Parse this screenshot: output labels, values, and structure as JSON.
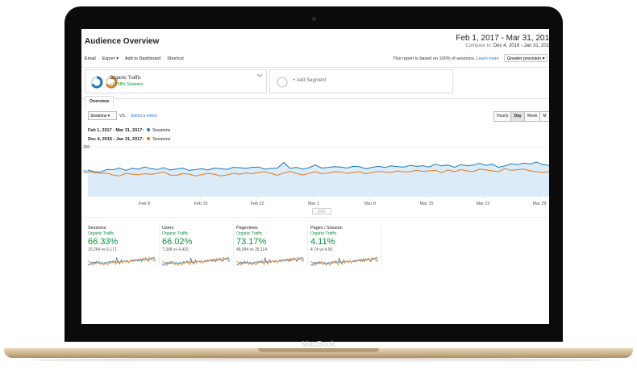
{
  "device": {
    "brand": "MacBook"
  },
  "header": {
    "title": "Audience Overview",
    "date_range": "Feb 1, 2017 - Mar 31, 201",
    "compare_prefix": "Compare to:",
    "compare_range": "Dec 4, 2016 - Jan 31, 201"
  },
  "toolbar": {
    "email": "Email",
    "export": "Export ▾",
    "add_dashboard": "Add to Dashboard",
    "shortcut": "Shortcut",
    "sessions_note": "This report is based on 100% of sessions.",
    "learn_more": "Learn more",
    "precision": "Greater precision ▾"
  },
  "segments": {
    "segment1_name": "Organic Traffic",
    "segment1_sub": "+10.58% Sessions",
    "add_segment": "+ Add Segment"
  },
  "tabs": {
    "overview": "Overview"
  },
  "controls": {
    "metric": "Sessions ▾",
    "vs": "VS.",
    "select_metric": "Select a metric",
    "granularity": [
      "Hourly",
      "Day",
      "Week",
      "M"
    ],
    "active_granularity": "Day"
  },
  "legend": [
    {
      "range": "Feb 1, 2017 - Mar 31, 2017:",
      "label": "Sessions",
      "color": "#1f78b4"
    },
    {
      "range": "Dec 4, 2016 - Jan 31, 2017:",
      "label": "Sessions",
      "color": "#e07b22"
    }
  ],
  "chart_data": {
    "type": "line",
    "y_ticks": [
      "300",
      "150"
    ],
    "ylim": [
      0,
      300
    ],
    "x_labels": [
      "Feb 8",
      "Feb 15",
      "Feb 22",
      "Mar 1",
      "Mar 8",
      "Mar 15",
      "Mar 22",
      "Mar 29"
    ],
    "series": [
      {
        "name": "Sessions",
        "color": "#1f78b4",
        "fill": true,
        "values": [
          160,
          150,
          148,
          163,
          162,
          172,
          158,
          170,
          165,
          178,
          168,
          163,
          174,
          160,
          166,
          172,
          158,
          162,
          168,
          160,
          172,
          168,
          164,
          176,
          174,
          170,
          176,
          178,
          165,
          170,
          172,
          205,
          170,
          176,
          166,
          174,
          190,
          172,
          175,
          180,
          178,
          172,
          182,
          180,
          168,
          176,
          182,
          175,
          185,
          180,
          178,
          188,
          182,
          186,
          178,
          195,
          185,
          190,
          176,
          192,
          186,
          190,
          200,
          188,
          195,
          176,
          185,
          198,
          192,
          202,
          196,
          208,
          192,
          188
        ]
      },
      {
        "name": "Sessions",
        "color": "#e07b22",
        "fill": false,
        "values": [
          150,
          145,
          140,
          142,
          130,
          125,
          140,
          135,
          132,
          138,
          134,
          140,
          148,
          130,
          128,
          138,
          136,
          125,
          132,
          140,
          135,
          125,
          130,
          140,
          135,
          142,
          138,
          145,
          150,
          140,
          128,
          142,
          152,
          140,
          130,
          140,
          150,
          138,
          142,
          150,
          148,
          140,
          145,
          150,
          138,
          145,
          152,
          148,
          145,
          155,
          148,
          150,
          158,
          152,
          155,
          158,
          145,
          160,
          150,
          162,
          155,
          150,
          165,
          160,
          155,
          150,
          168,
          158,
          162,
          165,
          155,
          150,
          145,
          150
        ]
      }
    ]
  },
  "metrics": [
    {
      "name": "Sessions",
      "segment": "Organic Traffic",
      "value": "66.33%",
      "compare": "10,264 vs 6,171"
    },
    {
      "name": "Users",
      "segment": "Organic Traffic",
      "value": "66.02%",
      "compare": "7,358 vs 4,432"
    },
    {
      "name": "Pageviews",
      "segment": "Organic Traffic",
      "value": "73.17%",
      "compare": "48,684 vs 28,114"
    },
    {
      "name": "Pages / Session",
      "segment": "Organic Traffic",
      "value": "4.11%",
      "compare": "4.74 vs 4.56"
    }
  ]
}
